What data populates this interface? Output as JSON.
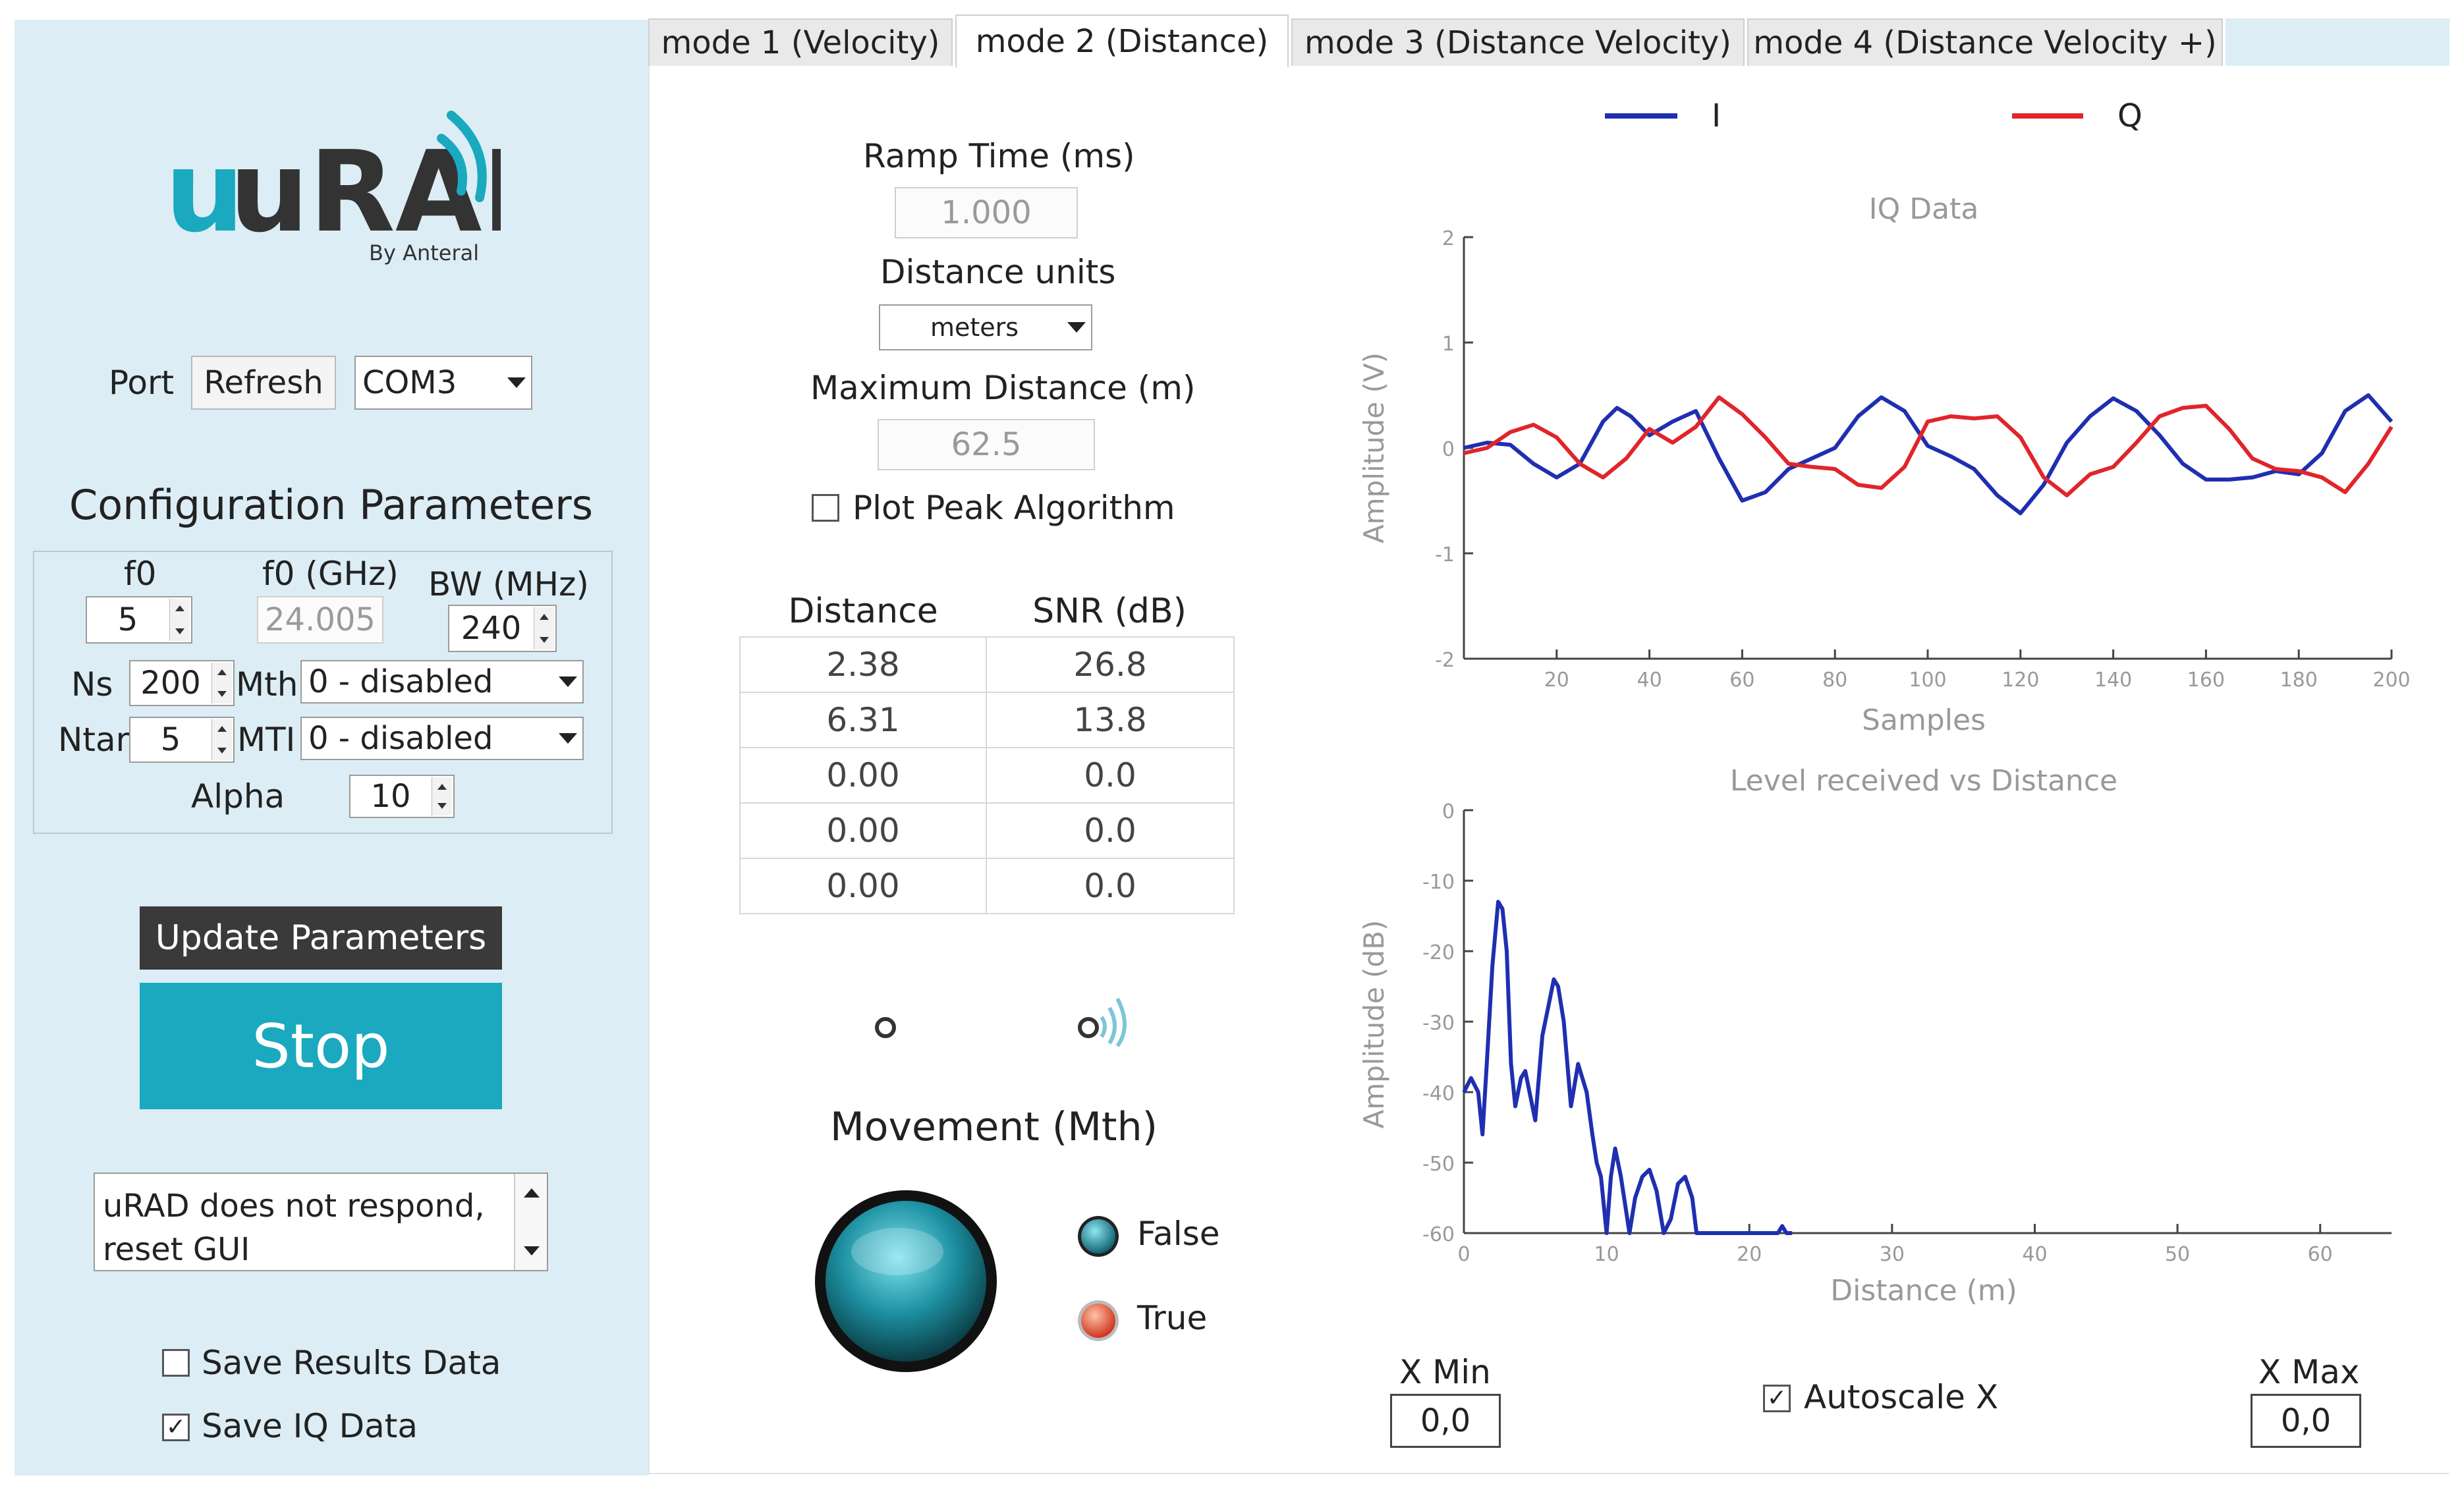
{
  "logo": {
    "name": "uRAD",
    "tagline": "By Anteral"
  },
  "port": {
    "label": "Port",
    "refresh_label": "Refresh",
    "selected": "COM3"
  },
  "config": {
    "title": "Configuration Parameters",
    "f0_label": "f0",
    "f0_value": "5",
    "f0ghz_label": "f0 (GHz)",
    "f0ghz_value": "24.005",
    "bw_label": "BW (MHz)",
    "bw_value": "240",
    "ns_label": "Ns",
    "ns_value": "200",
    "mth_label": "Mth",
    "mth_value": "0 - disabled",
    "ntar_label": "Ntar",
    "ntar_value": "5",
    "mti_label": "MTI",
    "mti_value": "0 - disabled",
    "alpha_label": "Alpha",
    "alpha_value": "10"
  },
  "update_label": "Update Parameters",
  "stop_label": "Stop",
  "status_message": "uRAD does not respond, reset GUI",
  "save_results_label": "Save Results Data",
  "save_iq_label": "Save IQ Data",
  "save_results_checked": false,
  "save_iq_checked": true,
  "tabs": [
    {
      "label": "mode 1 (Velocity)"
    },
    {
      "label": "mode 2 (Distance)"
    },
    {
      "label": "mode 3 (Distance Velocity)"
    },
    {
      "label": "mode 4 (Distance Velocity +)"
    }
  ],
  "active_tab": 1,
  "mode2": {
    "ramp_label": "Ramp Time (ms)",
    "ramp_value": "1.000",
    "units_label": "Distance units",
    "units_value": "meters",
    "maxdist_label": "Maximum Distance (m)",
    "maxdist_value": "62.5",
    "plot_peak_label": "Plot Peak Algorithm",
    "plot_peak_checked": false
  },
  "results_table": {
    "headers": [
      "Distance",
      "SNR (dB)"
    ],
    "rows": [
      [
        "2.38",
        "26.8"
      ],
      [
        "6.31",
        "13.8"
      ],
      [
        "0.00",
        "0.0"
      ],
      [
        "0.00",
        "0.0"
      ],
      [
        "0.00",
        "0.0"
      ]
    ]
  },
  "movement": {
    "title": "Movement (Mth)",
    "false_label": "False",
    "true_label": "True"
  },
  "colors": {
    "accent": "#1aa9bf",
    "i_series": "#1f2fb0",
    "q_series": "#e0252b",
    "led_false": "#1c8fa0",
    "led_true": "#e8553a"
  },
  "chart_data": [
    {
      "type": "line",
      "title": "IQ Data",
      "xlabel": "Samples",
      "ylabel": "Amplitude (V)",
      "xlim": [
        0,
        200
      ],
      "ylim": [
        -2,
        2
      ],
      "xticks": [
        20,
        40,
        60,
        80,
        100,
        120,
        140,
        160,
        180,
        200
      ],
      "yticks": [
        2,
        1,
        0,
        -1,
        -2
      ],
      "legend_position": "top",
      "series": [
        {
          "name": "I",
          "color": "#1f2fb0",
          "x": [
            0,
            5,
            10,
            15,
            20,
            25,
            30,
            33,
            36,
            40,
            45,
            50,
            55,
            60,
            65,
            70,
            75,
            80,
            85,
            90,
            95,
            100,
            105,
            110,
            115,
            120,
            125,
            130,
            135,
            140,
            145,
            150,
            155,
            160,
            165,
            170,
            175,
            180,
            185,
            190,
            195,
            200
          ],
          "y": [
            0,
            0.05,
            0.03,
            -0.15,
            -0.28,
            -0.15,
            0.25,
            0.38,
            0.3,
            0.12,
            0.25,
            0.35,
            -0.1,
            -0.5,
            -0.42,
            -0.2,
            -0.1,
            0,
            0.3,
            0.48,
            0.35,
            0.02,
            -0.08,
            -0.2,
            -0.45,
            -0.62,
            -0.35,
            0.05,
            0.3,
            0.47,
            0.35,
            0.12,
            -0.15,
            -0.3,
            -0.3,
            -0.28,
            -0.22,
            -0.25,
            -0.05,
            0.35,
            0.5,
            0.25
          ]
        },
        {
          "name": "Q",
          "color": "#e0252b",
          "x": [
            0,
            5,
            10,
            15,
            20,
            25,
            30,
            35,
            40,
            45,
            50,
            55,
            60,
            65,
            70,
            75,
            80,
            85,
            90,
            95,
            100,
            105,
            110,
            115,
            120,
            125,
            130,
            135,
            140,
            145,
            150,
            155,
            160,
            165,
            170,
            175,
            180,
            185,
            190,
            195,
            200
          ],
          "y": [
            -0.05,
            0,
            0.15,
            0.22,
            0.1,
            -0.15,
            -0.28,
            -0.1,
            0.18,
            0.05,
            0.2,
            0.48,
            0.32,
            0.1,
            -0.15,
            -0.18,
            -0.2,
            -0.35,
            -0.38,
            -0.18,
            0.25,
            0.3,
            0.28,
            0.3,
            0.1,
            -0.28,
            -0.45,
            -0.25,
            -0.18,
            0.05,
            0.3,
            0.38,
            0.4,
            0.18,
            -0.1,
            -0.2,
            -0.22,
            -0.28,
            -0.42,
            -0.15,
            0.2
          ]
        }
      ]
    },
    {
      "type": "line",
      "title": "Level received vs Distance",
      "xlabel": "Distance (m)",
      "ylabel": "Amplitude (dB)",
      "xlim": [
        0,
        65
      ],
      "ylim": [
        -60,
        0
      ],
      "xticks": [
        0,
        10,
        20,
        30,
        40,
        50,
        60
      ],
      "yticks": [
        0,
        -10,
        -20,
        -30,
        -40,
        -50,
        -60
      ],
      "series": [
        {
          "name": "",
          "color": "#1f2fb0",
          "x": [
            0,
            0.5,
            1,
            1.3,
            1.6,
            2,
            2.4,
            2.7,
            3,
            3.3,
            3.6,
            4,
            4.3,
            4.6,
            5,
            5.5,
            6,
            6.3,
            6.6,
            7,
            7.5,
            8,
            8.3,
            8.6,
            9,
            9.3,
            9.6,
            10,
            10.3,
            10.6,
            11,
            11.3,
            11.6,
            12,
            12.5,
            13,
            13.5,
            14,
            14.5,
            15,
            15.5,
            16,
            16.3,
            16.6,
            17,
            17.5,
            18,
            20,
            22,
            22.3,
            22.6,
            23
          ],
          "y": [
            -40,
            -38,
            -40,
            -46,
            -36,
            -22,
            -13,
            -14,
            -20,
            -36,
            -42,
            -38,
            -37,
            -40,
            -44,
            -32,
            -27,
            -24,
            -25,
            -30,
            -42,
            -36,
            -38,
            -40,
            -46,
            -50,
            -52,
            -60,
            -52,
            -48,
            -52,
            -56,
            -60,
            -55,
            -52,
            -51,
            -54,
            -60,
            -58,
            -53,
            -52,
            -55,
            -60,
            -60,
            -60,
            -60,
            -60,
            -60,
            -60,
            -59,
            -60,
            -60
          ]
        }
      ]
    }
  ],
  "xrange": {
    "min_label": "X Min",
    "min_value": "0,0",
    "autoscale_label": "Autoscale X",
    "autoscale_checked": true,
    "max_label": "X Max",
    "max_value": "0,0"
  }
}
